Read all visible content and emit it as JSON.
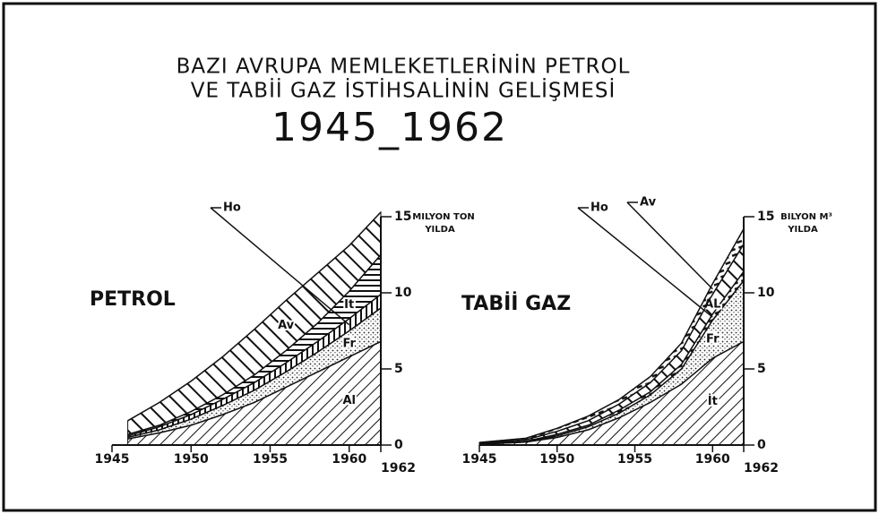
{
  "title": "BAZI AVRUPA MEMLEKETLERİNİN PETROL",
  "title_line2": "VE TABİİ GAZ İSTİHSALİNİN GELİŞMESİ",
  "subtitle": "1945_1962",
  "chart_data": [
    {
      "type": "stacked_area",
      "title": "PETROL",
      "ylabel": [
        "MILYON TON",
        "YILDA"
      ],
      "x": [
        1946,
        1948,
        1950,
        1952,
        1954,
        1956,
        1958,
        1960,
        1962
      ],
      "xlim": [
        1945,
        1962
      ],
      "xticks": [
        1945,
        1950,
        1955,
        1960,
        1962
      ],
      "ylim": [
        0,
        15
      ],
      "yticks": [
        0,
        5,
        10,
        15
      ],
      "series": [
        {
          "name": "Al",
          "color": "#111111",
          "pattern": "hatch-fwd",
          "values": [
            0.4,
            0.8,
            1.3,
            2.0,
            2.8,
            3.8,
            4.8,
            5.8,
            6.8
          ]
        },
        {
          "name": "Fr",
          "color": "#111111",
          "pattern": "dots",
          "values": [
            0.1,
            0.2,
            0.4,
            0.6,
            0.8,
            1.0,
            1.3,
            1.7,
            2.2
          ]
        },
        {
          "name": "Ho",
          "color": "#111111",
          "pattern": "hatch-v",
          "values": [
            0.1,
            0.2,
            0.3,
            0.4,
            0.5,
            0.6,
            0.7,
            0.8,
            0.9
          ]
        },
        {
          "name": "It",
          "color": "#111111",
          "pattern": "hatch-h",
          "values": [
            0.1,
            0.1,
            0.2,
            0.3,
            0.5,
            0.8,
            1.2,
            1.8,
            2.6
          ]
        },
        {
          "name": "Av",
          "color": "#111111",
          "pattern": "hatch-back",
          "values": [
            0.9,
            1.5,
            2.0,
            2.5,
            3.0,
            3.3,
            3.3,
            3.0,
            2.8
          ]
        }
      ]
    },
    {
      "type": "stacked_area",
      "title": "TABİİ GAZ",
      "ylabel": [
        "BILYON M³",
        "YILDA"
      ],
      "x": [
        1945,
        1948,
        1950,
        1952,
        1954,
        1956,
        1958,
        1960,
        1962
      ],
      "xlim": [
        1945,
        1962
      ],
      "xticks": [
        1945,
        1950,
        1955,
        1960,
        1962
      ],
      "ylim": [
        0,
        15
      ],
      "yticks": [
        0,
        5,
        10,
        15
      ],
      "series": [
        {
          "name": "İt",
          "color": "#111111",
          "pattern": "hatch-fwd",
          "values": [
            0.05,
            0.2,
            0.5,
            1.0,
            1.8,
            2.8,
            4.0,
            5.7,
            6.8
          ]
        },
        {
          "name": "Fr",
          "color": "#111111",
          "pattern": "dots",
          "values": [
            0,
            0,
            0.1,
            0.2,
            0.3,
            0.5,
            1.0,
            2.5,
            4.0
          ]
        },
        {
          "name": "Ho",
          "color": "#111111",
          "pattern": "hatch-dash",
          "values": [
            0.02,
            0.05,
            0.1,
            0.1,
            0.2,
            0.2,
            0.3,
            0.4,
            0.6
          ]
        },
        {
          "name": "AL",
          "color": "#111111",
          "pattern": "hatch-back",
          "values": [
            0.05,
            0.1,
            0.2,
            0.3,
            0.4,
            0.6,
            0.9,
            1.3,
            1.8
          ]
        },
        {
          "name": "Av",
          "color": "#111111",
          "pattern": "hatch-dash",
          "values": [
            0.05,
            0.1,
            0.2,
            0.3,
            0.3,
            0.4,
            0.5,
            0.7,
            1.0
          ]
        }
      ]
    }
  ]
}
